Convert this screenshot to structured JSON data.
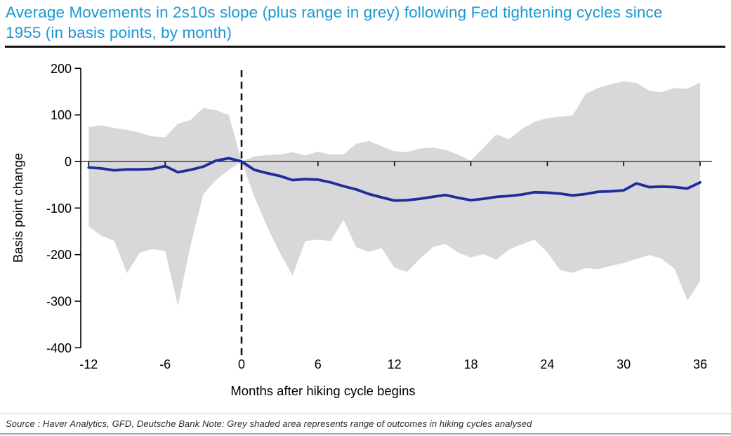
{
  "title": {
    "text": "Average Movements in 2s10s slope (plus range in grey) following Fed tightening cycles since 1955 (in basis points, by month)"
  },
  "footer": {
    "source": "Source : Haver Analytics, GFD, Deutsche Bank Note: Grey shaded area represents range of outcomes in hiking cycles analysed"
  },
  "colors": {
    "title_blue": "#1a99d5",
    "line_navy": "#1e2d9b",
    "band_grey": "#d8d8db",
    "axis_black": "#1c1c1c"
  },
  "chart_data": {
    "type": "line",
    "title": "Average Movements in 2s10s slope (plus range in grey) following Fed tightening cycles since 1955 (in basis points, by month)",
    "xlabel": "Months after hiking cycle begins",
    "ylabel": "Basis point change",
    "xlim": [
      -12,
      37
    ],
    "ylim": [
      -400,
      200
    ],
    "xticks": [
      -12,
      -6,
      0,
      6,
      12,
      18,
      24,
      30,
      36
    ],
    "yticks": [
      200,
      100,
      0,
      -100,
      -200,
      -300,
      -400
    ],
    "grid": false,
    "legend": "none",
    "annotations": [
      "dashed vertical line at month 0",
      "solid horizontal line at 0 bp"
    ],
    "x": [
      -12,
      -11,
      -10,
      -9,
      -8,
      -7,
      -6,
      -5,
      -4,
      -3,
      -2,
      -1,
      0,
      1,
      2,
      3,
      4,
      5,
      6,
      7,
      8,
      9,
      10,
      11,
      12,
      13,
      14,
      15,
      16,
      17,
      18,
      19,
      20,
      21,
      22,
      23,
      24,
      25,
      26,
      27,
      28,
      29,
      30,
      31,
      32,
      33,
      34,
      35,
      36
    ],
    "series": [
      {
        "name": "average",
        "values": [
          -13,
          -15,
          -19,
          -17,
          -17,
          -16,
          -10,
          -23,
          -18,
          -11,
          2,
          7,
          0,
          -18,
          -25,
          -31,
          -40,
          -38,
          -39,
          -45,
          -53,
          -60,
          -70,
          -77,
          -84,
          -83,
          -80,
          -76,
          -72,
          -78,
          -83,
          -80,
          -76,
          -74,
          -71,
          -66,
          -67,
          -69,
          -73,
          -70,
          -65,
          -64,
          -62,
          -47,
          -55,
          -54,
          -55,
          -58,
          -45
        ]
      },
      {
        "name": "range_upper",
        "values": [
          74,
          78,
          72,
          68,
          62,
          54,
          52,
          81,
          89,
          115,
          110,
          100,
          0,
          11,
          14,
          15,
          20,
          13,
          21,
          15,
          15,
          38,
          44,
          33,
          22,
          20,
          28,
          30,
          25,
          15,
          2,
          30,
          58,
          48,
          70,
          85,
          93,
          96,
          99,
          145,
          158,
          166,
          172,
          169,
          152,
          149,
          158,
          156,
          170
        ]
      },
      {
        "name": "range_lower",
        "values": [
          -140,
          -160,
          -170,
          -240,
          -196,
          -188,
          -192,
          -310,
          -180,
          -70,
          -40,
          -18,
          0,
          -75,
          -140,
          -196,
          -245,
          -171,
          -168,
          -171,
          -125,
          -184,
          -194,
          -186,
          -228,
          -237,
          -209,
          -184,
          -177,
          -196,
          -206,
          -199,
          -211,
          -189,
          -178,
          -168,
          -195,
          -233,
          -239,
          -229,
          -231,
          -224,
          -218,
          -209,
          -201,
          -209,
          -231,
          -299,
          -257
        ]
      }
    ]
  }
}
